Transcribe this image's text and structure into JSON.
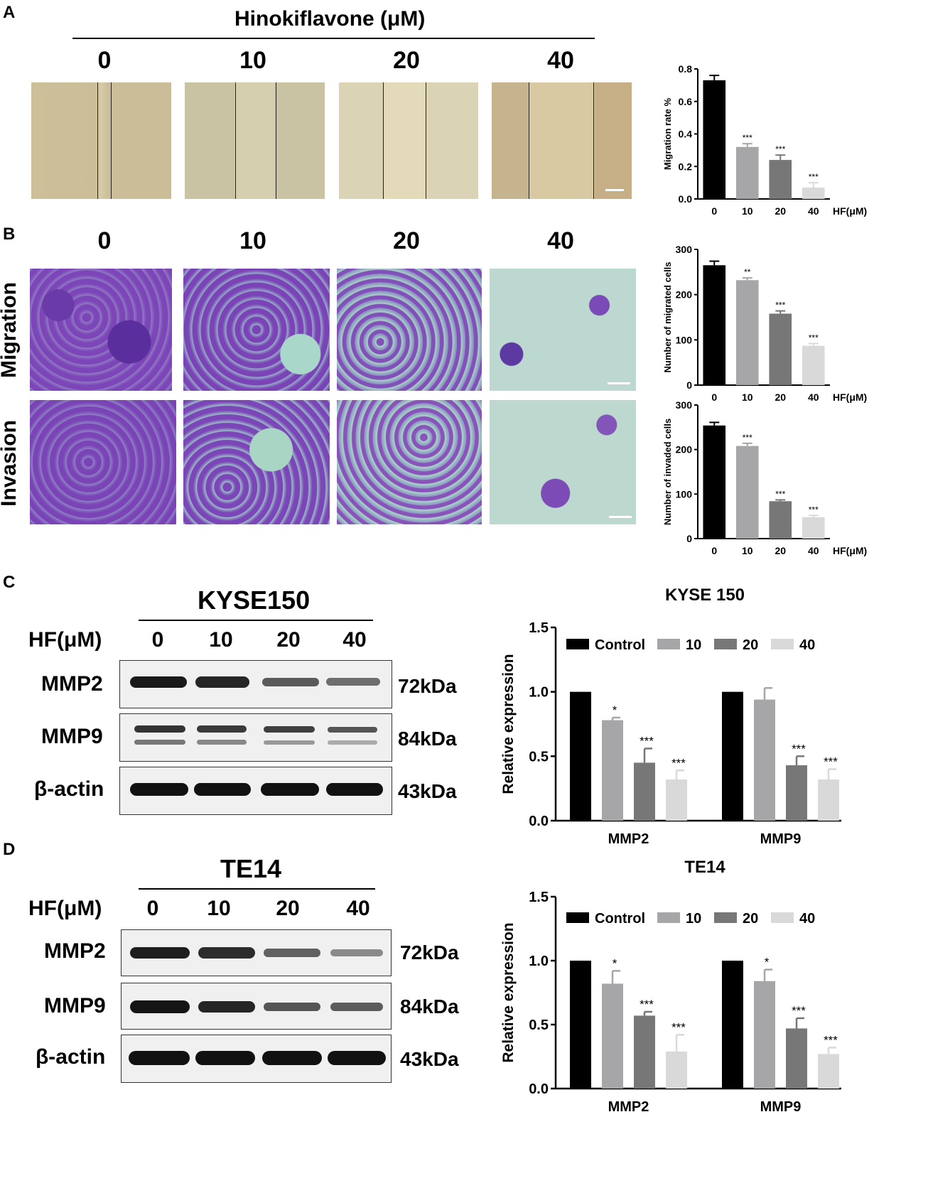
{
  "panels": {
    "A": "A",
    "B": "B",
    "C": "C",
    "D": "D"
  },
  "panelA": {
    "header": "Hinokiflavone (μM)",
    "doses": [
      "0",
      "10",
      "20",
      "40"
    ]
  },
  "panelB": {
    "doses": [
      "0",
      "10",
      "20",
      "40"
    ],
    "rows": [
      "Migration",
      "Invasion"
    ]
  },
  "panelC": {
    "cell_line": "KYSE150",
    "dose_label": "HF(μM)",
    "doses": [
      "0",
      "10",
      "20",
      "40"
    ],
    "proteins": [
      "MMP2",
      "MMP9",
      "β-actin"
    ],
    "sizes": [
      "72kDa",
      "84kDa",
      "43kDa"
    ]
  },
  "panelD": {
    "cell_line": "TE14",
    "dose_label": "HF(μM)",
    "doses": [
      "0",
      "10",
      "20",
      "40"
    ],
    "proteins": [
      "MMP2",
      "MMP9",
      "β-actin"
    ],
    "sizes": [
      "72kDa",
      "84kDa",
      "43kDa"
    ]
  },
  "colors": {
    "c0": "#000000",
    "c10": "#a6a6a8",
    "c20": "#777778",
    "c40": "#d9d9d9"
  },
  "chart_data": [
    {
      "id": "migration-rate",
      "type": "bar",
      "categories": [
        "0",
        "10",
        "20",
        "40"
      ],
      "values": [
        0.73,
        0.32,
        0.24,
        0.07
      ],
      "errors": [
        0.03,
        0.02,
        0.03,
        0.03
      ],
      "sig": [
        "",
        "***",
        "***",
        "***"
      ],
      "ylabel": "Migration rate %",
      "xunit": "HF(μM)",
      "ylim": [
        0,
        0.8
      ],
      "yticks": [
        "0.0",
        "0.2",
        "0.4",
        "0.6",
        "0.8"
      ]
    },
    {
      "id": "migrated-cells",
      "type": "bar",
      "categories": [
        "0",
        "10",
        "20",
        "40"
      ],
      "values": [
        265,
        232,
        158,
        87
      ],
      "errors": [
        9,
        5,
        6,
        5
      ],
      "sig": [
        "",
        "**",
        "***",
        "***"
      ],
      "ylabel": "Number of migrated cells",
      "xunit": "HF(μM)",
      "ylim": [
        0,
        300
      ],
      "yticks": [
        "0",
        "100",
        "200",
        "300"
      ]
    },
    {
      "id": "invaded-cells",
      "type": "bar",
      "categories": [
        "0",
        "10",
        "20",
        "40"
      ],
      "values": [
        254,
        208,
        84,
        48
      ],
      "errors": [
        7,
        6,
        3,
        4
      ],
      "sig": [
        "",
        "***",
        "***",
        "***"
      ],
      "ylabel": "Number of invaded cells",
      "xunit": "HF(μM)",
      "ylim": [
        0,
        300
      ],
      "yticks": [
        "0",
        "100",
        "200",
        "300"
      ]
    },
    {
      "id": "kyse150-expression",
      "type": "bar",
      "title": "KYSE 150",
      "categories": [
        "MMP2",
        "MMP9"
      ],
      "series": [
        {
          "name": "Control",
          "values": [
            1.0,
            1.0
          ],
          "errors": [
            0,
            0
          ],
          "sig": [
            "",
            ""
          ]
        },
        {
          "name": "10",
          "values": [
            0.78,
            0.94
          ],
          "errors": [
            0.02,
            0.09
          ],
          "sig": [
            "*",
            ""
          ]
        },
        {
          "name": "20",
          "values": [
            0.45,
            0.43
          ],
          "errors": [
            0.11,
            0.07
          ],
          "sig": [
            "***",
            "***"
          ]
        },
        {
          "name": "40",
          "values": [
            0.32,
            0.32
          ],
          "errors": [
            0.07,
            0.08
          ],
          "sig": [
            "***",
            "***"
          ]
        }
      ],
      "ylabel": "Relative expression",
      "ylim": [
        0,
        1.5
      ],
      "yticks": [
        "0.0",
        "0.5",
        "1.0",
        "1.5"
      ]
    },
    {
      "id": "te14-expression",
      "type": "bar",
      "title": "TE14",
      "categories": [
        "MMP2",
        "MMP9"
      ],
      "series": [
        {
          "name": "Control",
          "values": [
            1.0,
            1.0
          ],
          "errors": [
            0,
            0
          ],
          "sig": [
            "",
            ""
          ]
        },
        {
          "name": "10",
          "values": [
            0.82,
            0.84
          ],
          "errors": [
            0.1,
            0.09
          ],
          "sig": [
            "*",
            "*"
          ]
        },
        {
          "name": "20",
          "values": [
            0.57,
            0.47
          ],
          "errors": [
            0.03,
            0.08
          ],
          "sig": [
            "***",
            "***"
          ]
        },
        {
          "name": "40",
          "values": [
            0.29,
            0.27
          ],
          "errors": [
            0.13,
            0.05
          ],
          "sig": [
            "***",
            "***"
          ]
        }
      ],
      "ylabel": "Relative expression",
      "ylim": [
        0,
        1.5
      ],
      "yticks": [
        "0.0",
        "0.5",
        "1.0",
        "1.5"
      ]
    }
  ]
}
